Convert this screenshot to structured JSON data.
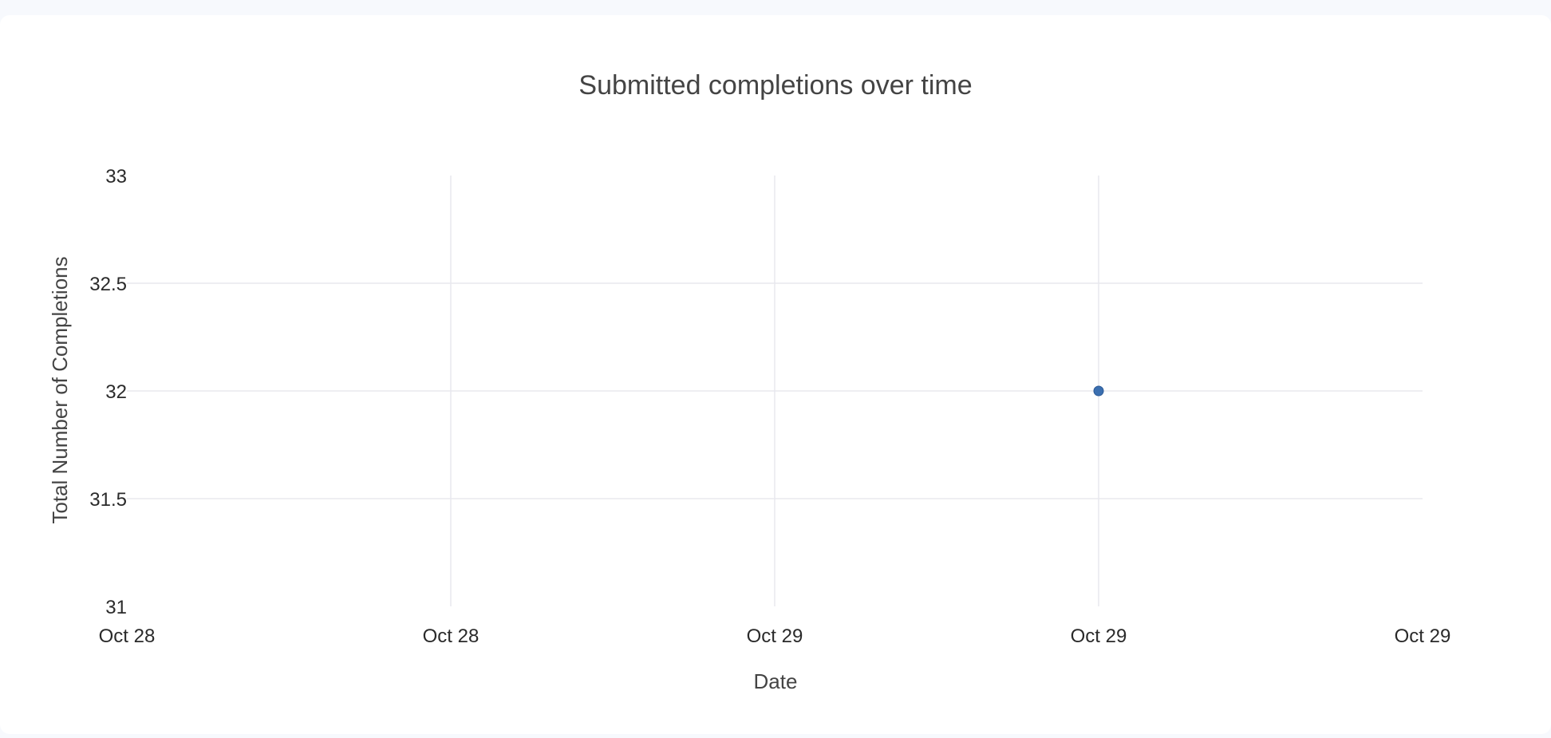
{
  "chart_data": {
    "type": "scatter",
    "title": "Submitted completions over time",
    "xlabel": "Date",
    "ylabel": "Total Number of Completions",
    "x_ticks": [
      "Oct 28",
      "Oct 28",
      "Oct 29",
      "Oct 29",
      "Oct 29"
    ],
    "y_ticks": [
      "33",
      "32.5",
      "32",
      "31.5",
      "31"
    ],
    "ylim": [
      31,
      33
    ],
    "series": [
      {
        "points": [
          {
            "x": "Oct 29",
            "y": 32
          }
        ]
      }
    ],
    "grid": true,
    "legend": "none"
  },
  "colors": {
    "marker": "#3b6fb0",
    "grid": "#e8e8ee",
    "text": "#444444",
    "tick_text": "#2a2a2a"
  }
}
